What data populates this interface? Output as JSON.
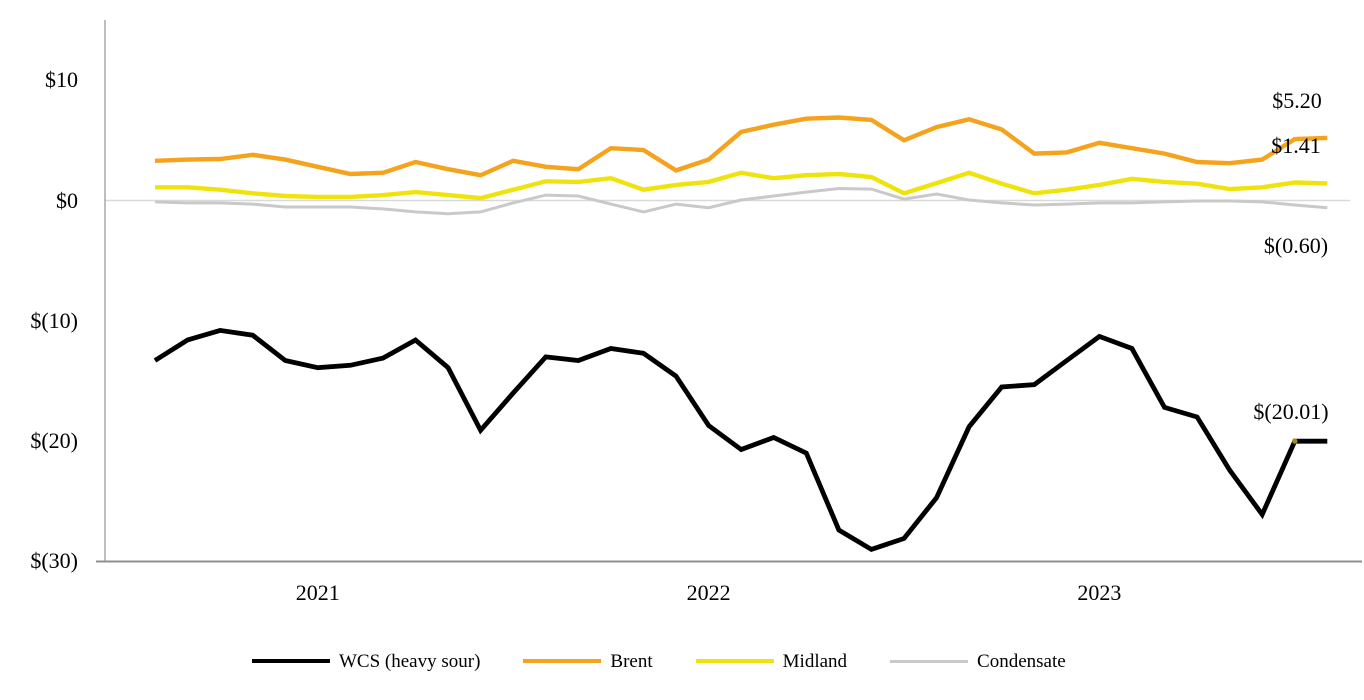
{
  "chart_data": {
    "type": "line",
    "title": "",
    "xlabel": "",
    "ylabel": "",
    "ylim": [
      -30,
      15
    ],
    "grid": "zero-line-only",
    "legend_position": "bottom",
    "x": [
      "2020-08",
      "2020-09",
      "2020-10",
      "2020-11",
      "2020-12",
      "2021-01",
      "2021-02",
      "2021-03",
      "2021-04",
      "2021-05",
      "2021-06",
      "2021-07",
      "2021-08",
      "2021-09",
      "2021-10",
      "2021-11",
      "2021-12",
      "2022-01",
      "2022-02",
      "2022-03",
      "2022-04",
      "2022-05",
      "2022-06",
      "2022-07",
      "2022-08",
      "2022-09",
      "2022-10",
      "2022-11",
      "2022-12",
      "2023-01",
      "2023-02",
      "2023-03",
      "2023-04",
      "2023-05",
      "2023-06",
      "2023-07",
      "2023-08"
    ],
    "x_tick_years": [
      "2021",
      "2022",
      "2023"
    ],
    "y_ticks": [
      {
        "label": "$10",
        "value": 10
      },
      {
        "label": "$0",
        "value": 0
      },
      {
        "label": "$(10)",
        "value": -10
      },
      {
        "label": "$(20)",
        "value": -20
      },
      {
        "label": "$(30)",
        "value": -30
      }
    ],
    "series": [
      {
        "name": "WCS (heavy sour)",
        "color": "#000000",
        "end_label": "$(20.01)",
        "values": [
          -13.3,
          -11.6,
          -10.8,
          -11.2,
          -13.3,
          -13.9,
          -13.7,
          -13.1,
          -11.6,
          -13.9,
          -19.1,
          -16.0,
          -13.0,
          -13.3,
          -12.3,
          -12.7,
          -14.6,
          -18.7,
          -20.7,
          -19.7,
          -21.0,
          -27.4,
          -29.0,
          -28.1,
          -24.7,
          -18.8,
          -15.5,
          -15.3,
          -13.3,
          -11.3,
          -12.3,
          -17.2,
          -18.0,
          -22.4,
          -26.1,
          -20.0,
          -20.01
        ]
      },
      {
        "name": "Brent",
        "color": "#F5A21D",
        "end_label": "$5.20",
        "values": [
          3.3,
          3.4,
          3.45,
          3.8,
          3.4,
          2.8,
          2.2,
          2.3,
          3.2,
          2.6,
          2.1,
          3.3,
          2.8,
          2.6,
          4.35,
          4.2,
          2.5,
          3.4,
          5.7,
          6.3,
          6.8,
          6.9,
          6.7,
          5.0,
          6.1,
          6.75,
          5.9,
          3.9,
          4.0,
          4.8,
          4.35,
          3.9,
          3.2,
          3.1,
          3.4,
          5.1,
          5.2
        ]
      },
      {
        "name": "Midland",
        "color": "#EFE30E",
        "end_label": "$1.41",
        "values": [
          1.1,
          1.1,
          0.9,
          0.6,
          0.37,
          0.3,
          0.3,
          0.45,
          0.7,
          0.45,
          0.2,
          0.9,
          1.6,
          1.55,
          1.85,
          0.9,
          1.3,
          1.55,
          2.3,
          1.85,
          2.1,
          2.2,
          1.95,
          0.6,
          1.45,
          2.3,
          1.4,
          0.6,
          0.9,
          1.3,
          1.8,
          1.55,
          1.4,
          0.95,
          1.1,
          1.5,
          1.41
        ]
      },
      {
        "name": "Condensate",
        "color": "#C9C9C9",
        "end_label": "$(0.60)",
        "values": [
          -0.12,
          -0.2,
          -0.2,
          -0.3,
          -0.54,
          -0.54,
          -0.54,
          -0.7,
          -0.95,
          -1.1,
          -0.95,
          -0.2,
          0.45,
          0.37,
          -0.3,
          -0.95,
          -0.3,
          -0.6,
          0.04,
          0.37,
          0.7,
          1.0,
          0.95,
          0.12,
          0.54,
          0.04,
          -0.2,
          -0.37,
          -0.3,
          -0.2,
          -0.2,
          -0.12,
          -0.04,
          -0.04,
          -0.12,
          -0.37,
          -0.6
        ]
      }
    ],
    "marker": {
      "series_index": 0,
      "point_index": 35,
      "color": "#A38B1C"
    }
  }
}
